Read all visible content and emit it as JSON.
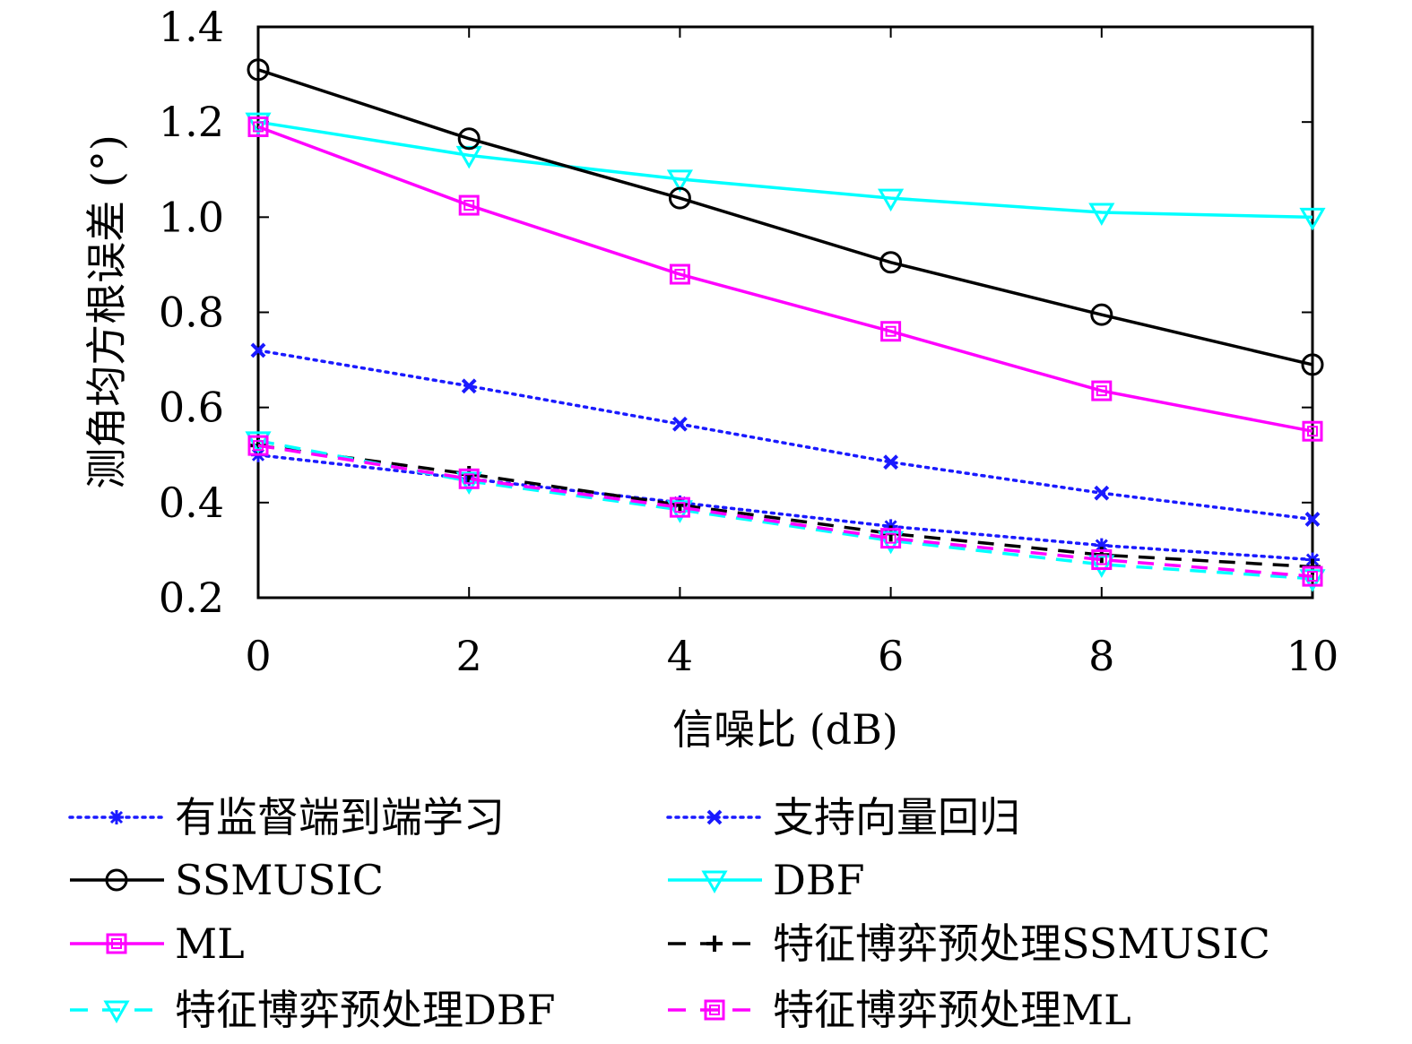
{
  "chart_data": {
    "type": "line",
    "title": "",
    "xlabel": "信噪比 (dB)",
    "ylabel": "测角均方根误差 (°)",
    "xlim": [
      0,
      10
    ],
    "ylim": [
      0.2,
      1.4
    ],
    "x": [
      0,
      2,
      4,
      6,
      8,
      10
    ],
    "xticks": [
      0,
      2,
      4,
      6,
      8,
      10
    ],
    "yticks": [
      "0.2",
      "0.4",
      "0.6",
      "0.8",
      "1.0",
      "1.2",
      "1.4"
    ],
    "legend_position": "bottom",
    "series": [
      {
        "name": "有监督端到端学习",
        "values": [
          0.5,
          0.45,
          0.4,
          0.35,
          0.31,
          0.28
        ],
        "color": "#1a1aff",
        "dash": "dotted",
        "marker": "asterisk"
      },
      {
        "name": "支持向量回归",
        "values": [
          0.72,
          0.645,
          0.565,
          0.485,
          0.42,
          0.365
        ],
        "color": "#1a1aff",
        "dash": "dotted",
        "marker": "x"
      },
      {
        "name": "SSMUSIC",
        "values": [
          1.31,
          1.165,
          1.04,
          0.905,
          0.795,
          0.69
        ],
        "color": "#000000",
        "dash": "solid",
        "marker": "circle"
      },
      {
        "name": "DBF",
        "values": [
          1.2,
          1.13,
          1.08,
          1.04,
          1.01,
          1.0
        ],
        "color": "#00ffff",
        "dash": "solid",
        "marker": "triangle-down"
      },
      {
        "name": "ML",
        "values": [
          1.19,
          1.025,
          0.88,
          0.76,
          0.635,
          0.55
        ],
        "color": "#ff00ff",
        "dash": "solid",
        "marker": "square"
      },
      {
        "name": "特征博弈预处理SSMUSIC",
        "values": [
          0.52,
          0.46,
          0.395,
          0.335,
          0.29,
          0.265
        ],
        "color": "#000000",
        "dash": "dashed",
        "marker": "plus"
      },
      {
        "name": "特征博弈预处理DBF",
        "values": [
          0.53,
          0.445,
          0.385,
          0.32,
          0.27,
          0.24
        ],
        "color": "#00ffff",
        "dash": "dashed",
        "marker": "triangle-down"
      },
      {
        "name": "特征博弈预处理ML",
        "values": [
          0.52,
          0.45,
          0.39,
          0.325,
          0.28,
          0.245
        ],
        "color": "#ff00ff",
        "dash": "dashed",
        "marker": "square"
      }
    ]
  }
}
